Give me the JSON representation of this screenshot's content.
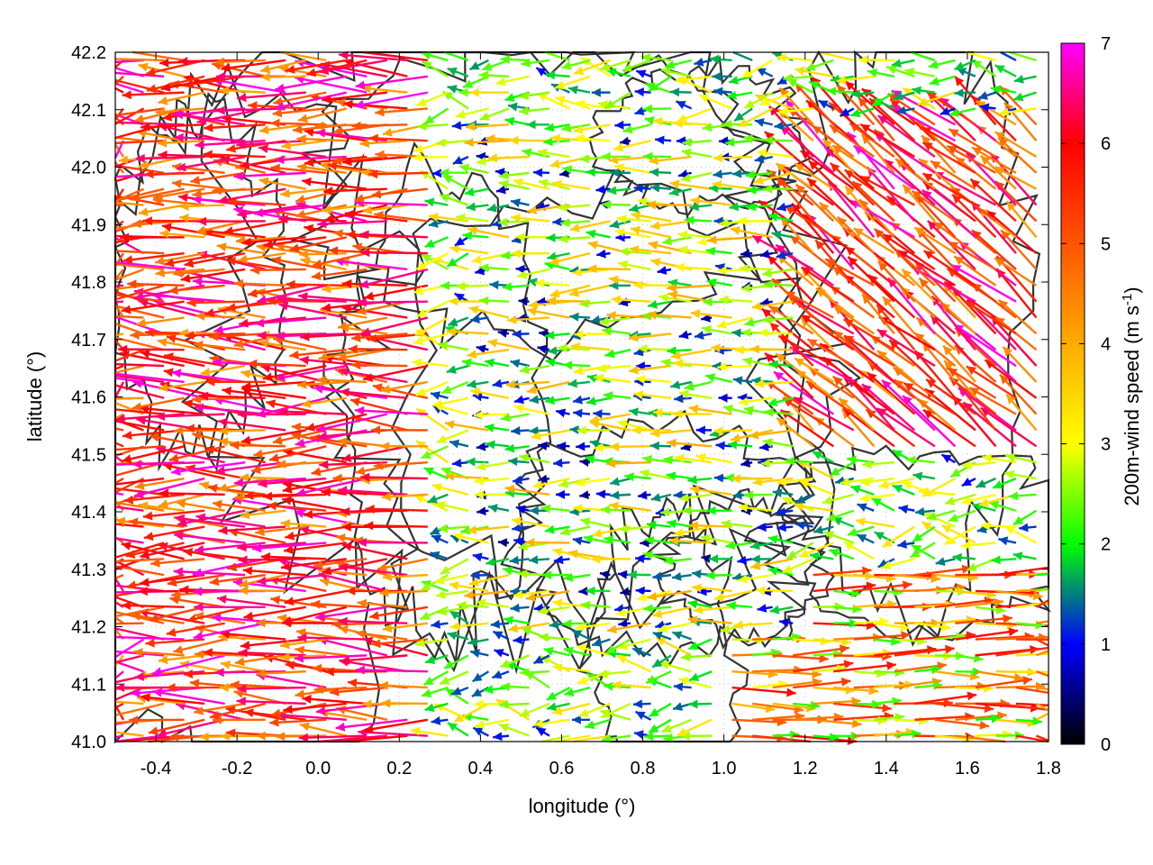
{
  "chart_data": {
    "type": "vector-field",
    "xlabel": "longitude (°)",
    "ylabel": "latitude (°)",
    "xlim": [
      -0.5,
      1.8
    ],
    "ylim": [
      41.0,
      42.2
    ],
    "x_ticks": [
      "-0.4",
      "-0.2",
      "0.0",
      "0.2",
      "0.4",
      "0.6",
      "0.8",
      "1.0",
      "1.2",
      "1.4",
      "1.6",
      "1.8"
    ],
    "y_ticks": [
      "41.0",
      "41.1",
      "41.2",
      "41.3",
      "41.4",
      "41.5",
      "41.6",
      "41.7",
      "41.8",
      "41.9",
      "42.0",
      "42.1",
      "42.2"
    ],
    "grid": true,
    "colorbar": {
      "label_main": "200m-wind speed (m s",
      "label_sup": "-1",
      "label_close": ")",
      "range": [
        0,
        7
      ],
      "ticks": [
        "0",
        "1",
        "2",
        "3",
        "4",
        "5",
        "6",
        "7"
      ],
      "colormap": [
        "#000000",
        "#0000ff",
        "#00ff00",
        "#ffff00",
        "#ffaa00",
        "#ff5500",
        "#ff0000",
        "#ff00ff"
      ]
    },
    "wind_regions": [
      {
        "region": "west",
        "lon": [
          -0.5,
          0.3
        ],
        "lat": [
          41.0,
          42.2
        ],
        "direction": "westward",
        "speed_range": [
          4,
          7
        ]
      },
      {
        "region": "central",
        "lon": [
          0.4,
          1.2
        ],
        "lat": [
          41.2,
          42.1
        ],
        "direction": "westward",
        "speed_range": [
          0.5,
          4
        ]
      },
      {
        "region": "northeast",
        "lon": [
          1.2,
          1.8
        ],
        "lat": [
          41.5,
          42.1
        ],
        "direction": "northwestward",
        "speed_range": [
          4,
          7
        ]
      },
      {
        "region": "southeast",
        "lon": [
          1.0,
          1.8
        ],
        "lat": [
          41.0,
          41.3
        ],
        "direction": "eastward",
        "speed_range": [
          2,
          6
        ]
      }
    ],
    "contour_color": "#333333"
  }
}
